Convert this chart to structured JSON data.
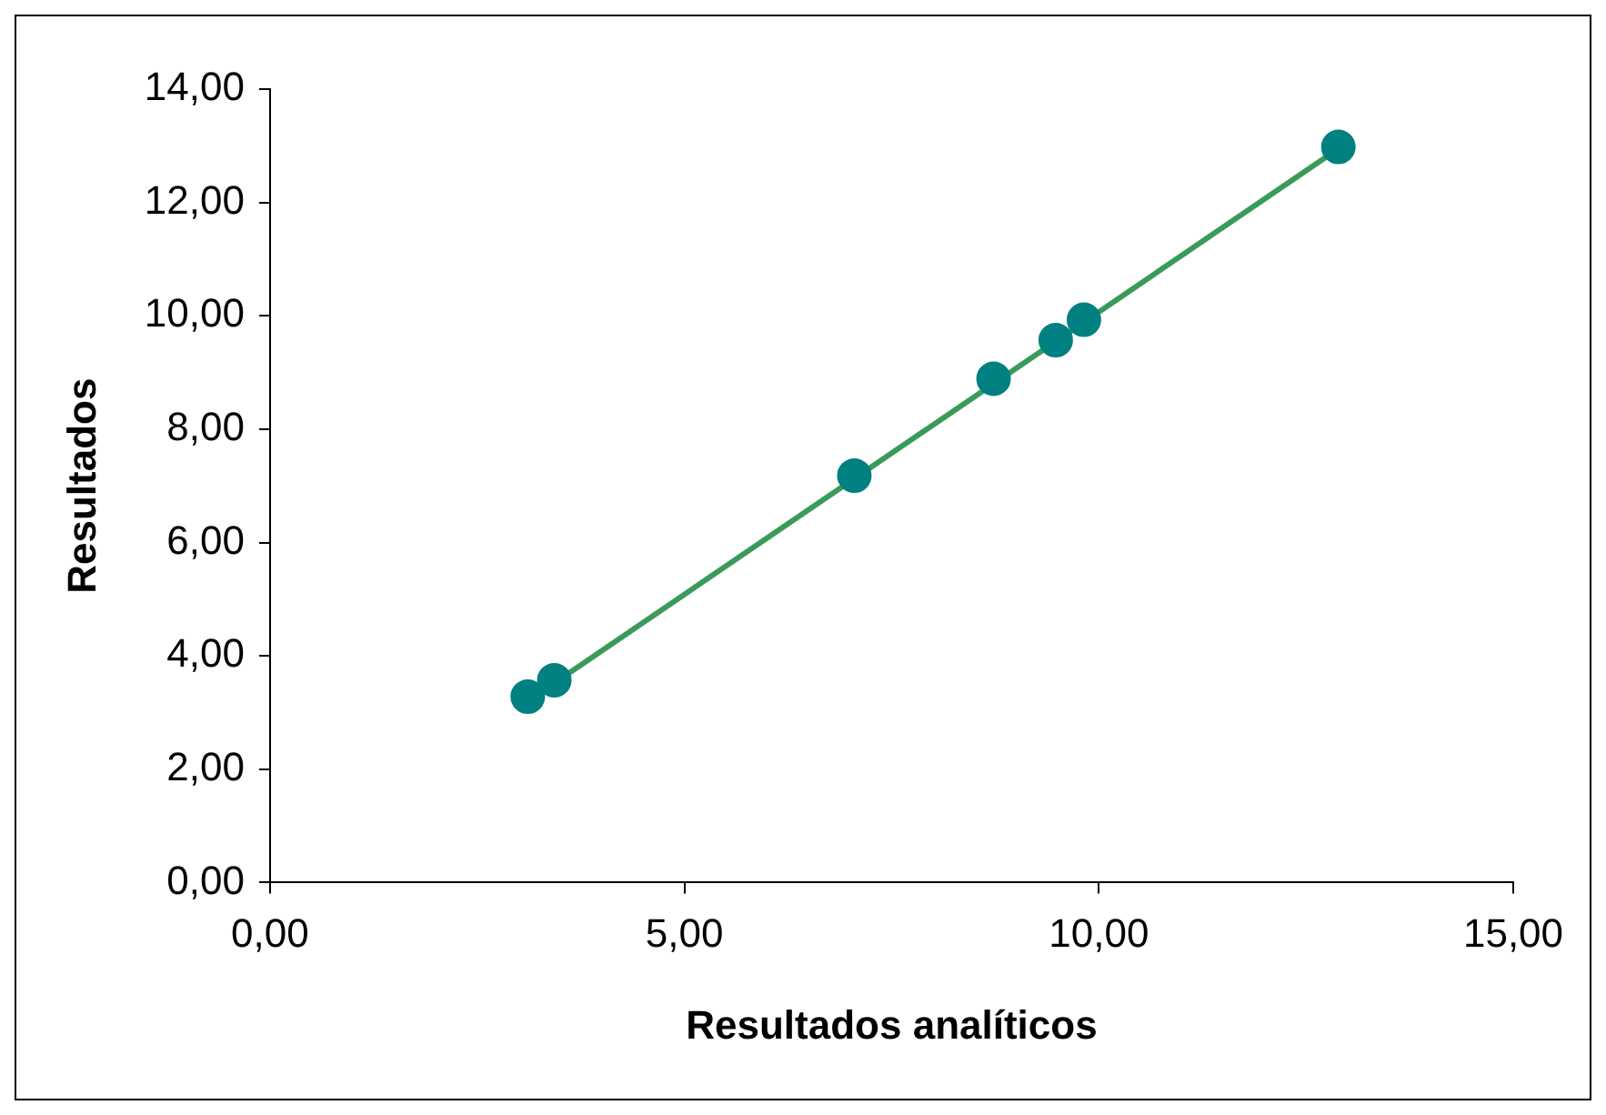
{
  "chart_data": {
    "type": "scatter",
    "xlabel": "Resultados analíticos",
    "ylabel": "Resultados",
    "xlim": [
      0,
      15
    ],
    "ylim": [
      0,
      14
    ],
    "xticks": [
      {
        "value": 0,
        "label": "0,00"
      },
      {
        "value": 5,
        "label": "5,00"
      },
      {
        "value": 10,
        "label": "10,00"
      },
      {
        "value": 15,
        "label": "15,00"
      }
    ],
    "yticks": [
      {
        "value": 0,
        "label": "0,00"
      },
      {
        "value": 2,
        "label": "2,00"
      },
      {
        "value": 4,
        "label": "4,00"
      },
      {
        "value": 6,
        "label": "6,00"
      },
      {
        "value": 8,
        "label": "8,00"
      },
      {
        "value": 10,
        "label": "10,00"
      },
      {
        "value": 12,
        "label": "12,00"
      },
      {
        "value": 14,
        "label": "14,00"
      }
    ],
    "grid": false,
    "legend": false,
    "marker": "circle",
    "series": [
      {
        "type": "line",
        "color": "#3a9a5a",
        "x": [
          3.11,
          12.89
        ],
        "values": [
          3.2,
          12.95
        ],
        "marker": "none"
      },
      {
        "type": "scatter",
        "color": "#008080",
        "x": [
          3.11,
          3.43,
          7.05,
          8.73,
          9.48,
          9.82,
          12.89
        ],
        "values": [
          3.28,
          3.57,
          7.18,
          8.89,
          9.57,
          9.93,
          12.98
        ]
      }
    ]
  }
}
